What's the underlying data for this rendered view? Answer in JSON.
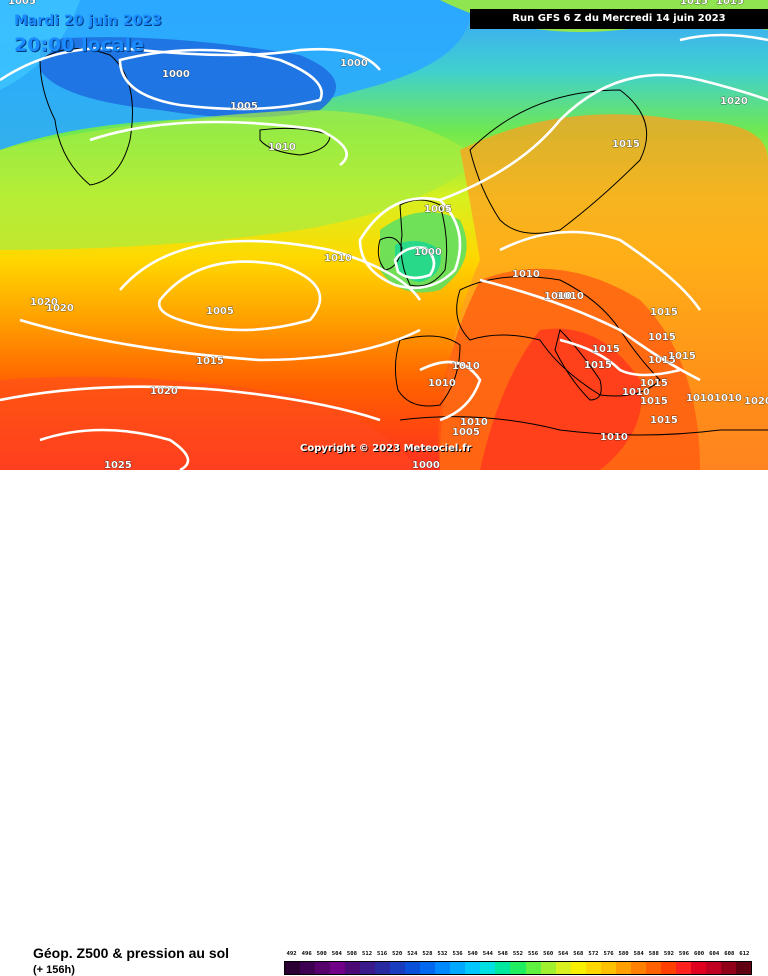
{
  "header": {
    "date": "Mardi 20 juin 2023",
    "time": "20:00 locale",
    "run": "Run GFS 6 Z du Mercredi 14 juin 2023"
  },
  "copyright": "Copyright © 2023 Meteociel.fr",
  "legend": {
    "title": "Géop. Z500 & pression au sol",
    "subtitle": "(+ 156h)",
    "scale": [
      {
        "value": "492",
        "color": "#2a0033"
      },
      {
        "value": "496",
        "color": "#3d0052"
      },
      {
        "value": "500",
        "color": "#56006e"
      },
      {
        "value": "504",
        "color": "#700088"
      },
      {
        "value": "508",
        "color": "#4b0a75"
      },
      {
        "value": "512",
        "color": "#3a1a8a"
      },
      {
        "value": "516",
        "color": "#2a2aa0"
      },
      {
        "value": "520",
        "color": "#1a3cbf"
      },
      {
        "value": "524",
        "color": "#0a50d8"
      },
      {
        "value": "528",
        "color": "#0068ee"
      },
      {
        "value": "532",
        "color": "#0088ff"
      },
      {
        "value": "536",
        "color": "#00a8ff"
      },
      {
        "value": "540",
        "color": "#00c8ff"
      },
      {
        "value": "544",
        "color": "#00e0e0"
      },
      {
        "value": "548",
        "color": "#00e8a0"
      },
      {
        "value": "552",
        "color": "#20ee60"
      },
      {
        "value": "556",
        "color": "#60f040"
      },
      {
        "value": "560",
        "color": "#a0f030"
      },
      {
        "value": "564",
        "color": "#d8f020"
      },
      {
        "value": "568",
        "color": "#f8f000"
      },
      {
        "value": "572",
        "color": "#ffd800"
      },
      {
        "value": "576",
        "color": "#ffc000"
      },
      {
        "value": "580",
        "color": "#ffa000"
      },
      {
        "value": "584",
        "color": "#ff8000"
      },
      {
        "value": "588",
        "color": "#ff6000"
      },
      {
        "value": "592",
        "color": "#ff4000"
      },
      {
        "value": "596",
        "color": "#ff2020"
      },
      {
        "value": "600",
        "color": "#e00020"
      },
      {
        "value": "604",
        "color": "#c00020"
      },
      {
        "value": "608",
        "color": "#900018"
      },
      {
        "value": "612",
        "color": "#600010"
      }
    ]
  },
  "isobars": [
    {
      "id": "l1",
      "label": "1005"
    },
    {
      "id": "l2",
      "label": "1000"
    },
    {
      "id": "l3",
      "label": "1000"
    },
    {
      "id": "l4",
      "label": "1005"
    },
    {
      "id": "l5",
      "label": "1010"
    },
    {
      "id": "l6",
      "label": "1020"
    },
    {
      "id": "l7",
      "label": "1015"
    },
    {
      "id": "l8",
      "label": "1005"
    },
    {
      "id": "l9",
      "label": "1000"
    },
    {
      "id": "l10",
      "label": "1010"
    },
    {
      "id": "l11",
      "label": "1010"
    },
    {
      "id": "l12",
      "label": "1010"
    },
    {
      "id": "l13",
      "label": "1020"
    },
    {
      "id": "l14",
      "label": "1020"
    },
    {
      "id": "l15",
      "label": "1005"
    },
    {
      "id": "l16",
      "label": "1015"
    },
    {
      "id": "l17",
      "label": "1020"
    },
    {
      "id": "l18",
      "label": "1010"
    },
    {
      "id": "l19",
      "label": "1010"
    },
    {
      "id": "l20",
      "label": "1015"
    },
    {
      "id": "l21",
      "label": "1015"
    },
    {
      "id": "l22",
      "label": "1015"
    },
    {
      "id": "l23",
      "label": "1015"
    },
    {
      "id": "l24",
      "label": "1015"
    },
    {
      "id": "l25",
      "label": "1010"
    },
    {
      "id": "l26",
      "label": "1010"
    },
    {
      "id": "l27",
      "label": "1010"
    },
    {
      "id": "l28",
      "label": "1005"
    },
    {
      "id": "l29",
      "label": "1010"
    },
    {
      "id": "l30",
      "label": "1015"
    },
    {
      "id": "l31",
      "label": "1010"
    },
    {
      "id": "l32",
      "label": "1015"
    },
    {
      "id": "l33",
      "label": "1015"
    },
    {
      "id": "l34",
      "label": "1025"
    },
    {
      "id": "l35",
      "label": "1000"
    },
    {
      "id": "l36",
      "label": "1020"
    },
    {
      "id": "l37",
      "label": "1015"
    },
    {
      "id": "l38",
      "label": "1010"
    },
    {
      "id": "l39",
      "label": "1015"
    },
    {
      "id": "l40",
      "label": "1015"
    }
  ]
}
